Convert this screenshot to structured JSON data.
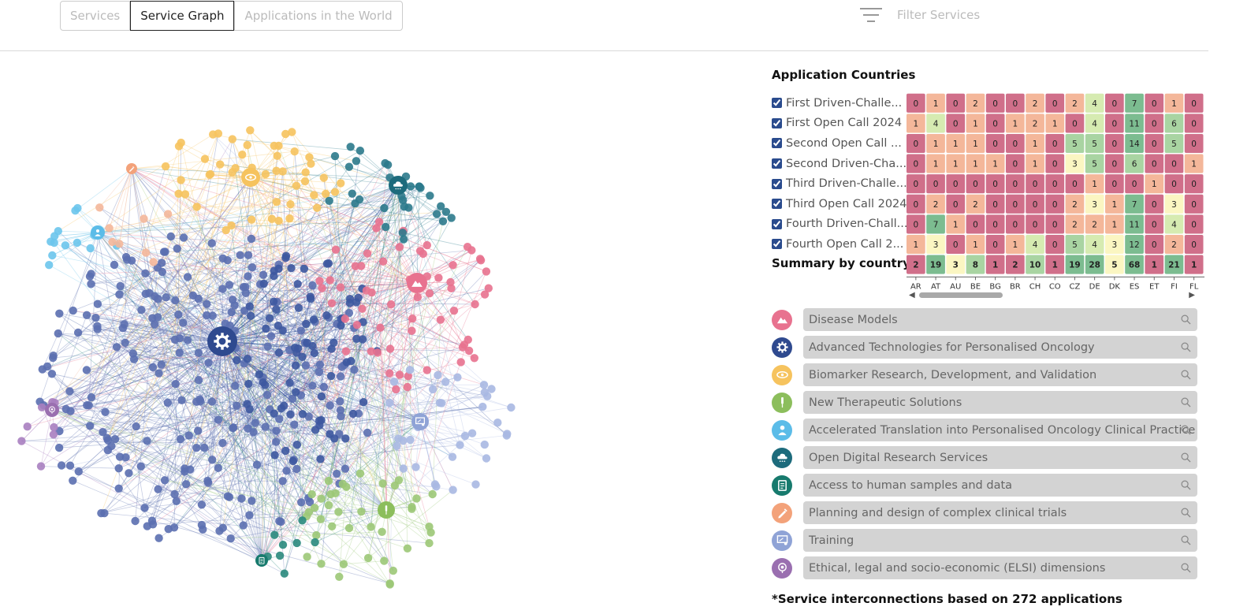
{
  "tabs": [
    {
      "label": "Services",
      "active": false
    },
    {
      "label": "Service Graph",
      "active": true
    },
    {
      "label": "Applications in the World",
      "active": false
    }
  ],
  "filter": {
    "placeholder": "Filter Services"
  },
  "heatmap": {
    "title": "Application Countries",
    "summary_label": "Summary by country",
    "countries": [
      "AR",
      "AT",
      "AU",
      "BE",
      "BG",
      "BR",
      "CH",
      "CO",
      "CZ",
      "DE",
      "DK",
      "ES",
      "ET",
      "FI",
      "FL"
    ],
    "rows": [
      {
        "label": "First Driven-Challe...",
        "checked": true,
        "values": [
          0,
          1,
          0,
          2,
          0,
          0,
          2,
          0,
          2,
          4,
          0,
          7,
          0,
          1,
          0
        ]
      },
      {
        "label": "First Open Call 2024",
        "checked": true,
        "values": [
          1,
          4,
          0,
          1,
          0,
          1,
          2,
          1,
          0,
          4,
          0,
          11,
          0,
          6,
          0
        ]
      },
      {
        "label": "Second Open Call ...",
        "checked": true,
        "values": [
          0,
          1,
          1,
          1,
          0,
          0,
          1,
          0,
          5,
          5,
          0,
          14,
          0,
          5,
          0
        ]
      },
      {
        "label": "Second Driven-Cha...",
        "checked": true,
        "values": [
          0,
          1,
          1,
          1,
          1,
          0,
          1,
          0,
          3,
          5,
          0,
          6,
          0,
          0,
          1
        ]
      },
      {
        "label": "Third Driven-Challe...",
        "checked": true,
        "values": [
          0,
          0,
          0,
          0,
          0,
          0,
          0,
          0,
          0,
          1,
          0,
          0,
          1,
          0,
          0
        ]
      },
      {
        "label": "Third Open Call 2024",
        "checked": true,
        "values": [
          0,
          2,
          0,
          2,
          0,
          0,
          0,
          0,
          2,
          3,
          1,
          7,
          0,
          3,
          0
        ]
      },
      {
        "label": "Fourth Driven-Chall...",
        "checked": true,
        "values": [
          0,
          7,
          1,
          0,
          0,
          0,
          0,
          0,
          2,
          2,
          1,
          11,
          0,
          4,
          0
        ]
      },
      {
        "label": "Fourth Open Call 2...",
        "checked": true,
        "values": [
          1,
          3,
          0,
          1,
          0,
          1,
          4,
          0,
          5,
          4,
          3,
          12,
          0,
          2,
          0
        ]
      }
    ],
    "summary": [
      2,
      19,
      3,
      8,
      1,
      2,
      10,
      1,
      19,
      28,
      5,
      68,
      1,
      21,
      1
    ],
    "colors": {
      "zero": "#d06f8a",
      "low": "#f4b79a",
      "mid": "#fbf6c2",
      "midhigh": "#d6ebb1",
      "high": "#a9d4a2",
      "top": "#7cbc90"
    }
  },
  "categories": [
    {
      "name": "Disease Models",
      "color": "#e8728f",
      "icon": "mountain-icon"
    },
    {
      "name": "Advanced Technologies for Personalised Oncology",
      "color": "#2f4a8f",
      "icon": "gear-icon"
    },
    {
      "name": "Biomarker Research, Development, and Validation",
      "color": "#f6c35e",
      "icon": "eye-icon"
    },
    {
      "name": "New Therapeutic Solutions",
      "color": "#8cbe5c",
      "icon": "syringe-icon"
    },
    {
      "name": "Accelerated Translation into Personalised Oncology Clinical Practice",
      "color": "#5bbce8",
      "icon": "doctor-icon"
    },
    {
      "name": "Open Digital Research Services",
      "color": "#1d6b7c",
      "icon": "cloud-icon"
    },
    {
      "name": "Access to human samples and data",
      "color": "#177a6d",
      "icon": "clipboard-icon"
    },
    {
      "name": "Planning and design of complex clinical trials",
      "color": "#f3a27a",
      "icon": "pen-icon"
    },
    {
      "name": "Training",
      "color": "#8fa3d6",
      "icon": "board-icon"
    },
    {
      "name": "Ethical, legal and socio-economic (ELSI) dimensions",
      "color": "#9a6fb0",
      "icon": "scale-icon"
    }
  ],
  "footnote": "*Service interconnections based on 272 applications"
}
